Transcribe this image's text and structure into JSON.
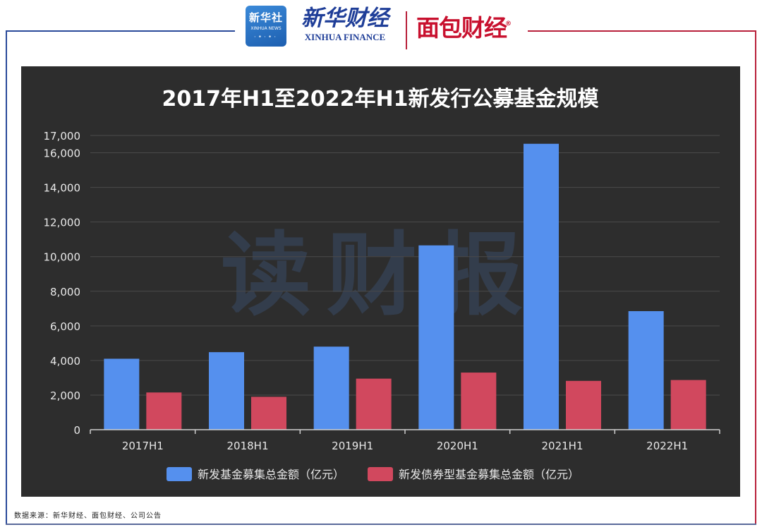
{
  "header": {
    "xinhua_logo_cn": "新华社",
    "xinhua_logo_en": "XINHUA NEWS",
    "finance_logo_cn": "新华财经",
    "finance_logo_en": "XINHUA FINANCE",
    "partner_logo": "面包财经",
    "partner_logo_mark": "®"
  },
  "watermark": "读财报",
  "source": "数据来源：新华财经、面包财经、公司公告",
  "colors": {
    "chart_bg": "#2d2d2d",
    "series_1": "#5590ee",
    "series_2": "#d1485e",
    "text": "#e8e8e8"
  },
  "chart_data": {
    "type": "bar",
    "title": "2017年H1至2022年H1新发行公募基金规模",
    "categories": [
      "2017H1",
      "2018H1",
      "2019H1",
      "2020H1",
      "2021H1",
      "2022H1"
    ],
    "series": [
      {
        "name": "新发基金募集总金额（亿元）",
        "values": [
          4100,
          4480,
          4800,
          10650,
          16520,
          6850
        ]
      },
      {
        "name": "新发债券型基金募集总金额（亿元）",
        "values": [
          2150,
          1900,
          2950,
          3300,
          2820,
          2870
        ]
      }
    ],
    "yticks": [
      0,
      2000,
      4000,
      6000,
      8000,
      10000,
      12000,
      14000,
      16000,
      17000
    ],
    "ytick_labels": [
      "0",
      "2,000",
      "4,000",
      "6,000",
      "8,000",
      "10,000",
      "12,000",
      "14,000",
      "16,000",
      "17,000"
    ],
    "ylim": [
      0,
      17000
    ],
    "xlabel": "",
    "ylabel": "",
    "grid": true,
    "legend": "bottom-center"
  }
}
